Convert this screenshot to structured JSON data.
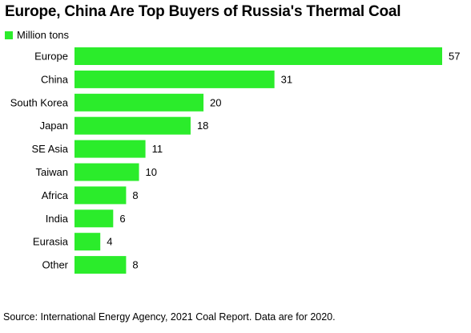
{
  "chart_data": {
    "type": "bar",
    "orientation": "horizontal",
    "title": "Europe, China Are Top Buyers of Russia's Thermal Coal",
    "legend": [
      {
        "name": "Million tons",
        "color": "#2bec2b"
      }
    ],
    "categories": [
      "Europe",
      "China",
      "South Korea",
      "Japan",
      "SE Asia",
      "Taiwan",
      "Africa",
      "India",
      "Eurasia",
      "Other"
    ],
    "series": [
      {
        "name": "Million tons",
        "values": [
          57,
          31,
          20,
          18,
          11,
          10,
          8,
          6,
          4,
          8
        ]
      }
    ],
    "data_labels": [
      "57",
      "31",
      "20",
      "18",
      "11",
      "10",
      "8",
      "6",
      "4",
      "8"
    ],
    "xlim": [
      0,
      57
    ],
    "grid": false,
    "legend_position": "top-left",
    "source": "Source: International Energy Agency, 2021 Coal Report. Data are for 2020."
  },
  "colors": {
    "bar": "#2bec2b"
  }
}
